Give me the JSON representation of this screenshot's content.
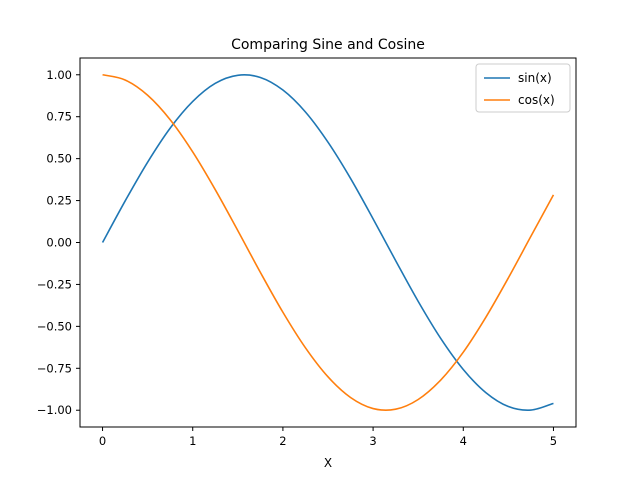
{
  "chart_data": {
    "type": "line",
    "title": "Comparing Sine and Cosine",
    "xlabel": "X",
    "ylabel": "",
    "xlim": [
      -0.25,
      5.25
    ],
    "ylim": [
      -1.1,
      1.1
    ],
    "xticks": [
      0,
      1,
      2,
      3,
      4,
      5
    ],
    "xtick_labels": [
      "0",
      "1",
      "2",
      "3",
      "4",
      "5"
    ],
    "yticks": [
      1.0,
      0.75,
      0.5,
      0.25,
      0.0,
      -0.25,
      -0.5,
      -0.75,
      -1.0
    ],
    "ytick_labels": [
      "1.00",
      "0.75",
      "0.50",
      "0.25",
      "0.00",
      "−0.25",
      "−0.50",
      "−0.75",
      "−1.00"
    ],
    "grid": false,
    "legend_position": "top-right",
    "x": [
      0,
      0.25,
      0.5,
      0.75,
      1.0,
      1.25,
      1.5,
      1.75,
      2.0,
      2.25,
      2.5,
      2.75,
      3.0,
      3.25,
      3.5,
      3.75,
      4.0,
      4.25,
      4.5,
      4.75,
      5.0
    ],
    "series": [
      {
        "name": "sin(x)",
        "color": "#1f77b4",
        "values": [
          0.0,
          0.247,
          0.479,
          0.682,
          0.841,
          0.949,
          0.997,
          0.984,
          0.909,
          0.778,
          0.598,
          0.382,
          0.141,
          -0.108,
          -0.351,
          -0.572,
          -0.757,
          -0.895,
          -0.978,
          -0.999,
          -0.959
        ]
      },
      {
        "name": "cos(x)",
        "color": "#ff7f0e",
        "values": [
          1.0,
          0.969,
          0.878,
          0.732,
          0.54,
          0.315,
          0.071,
          -0.178,
          -0.416,
          -0.628,
          -0.801,
          -0.924,
          -0.99,
          -0.994,
          -0.936,
          -0.82,
          -0.654,
          -0.446,
          -0.211,
          0.037,
          0.284
        ]
      }
    ]
  }
}
